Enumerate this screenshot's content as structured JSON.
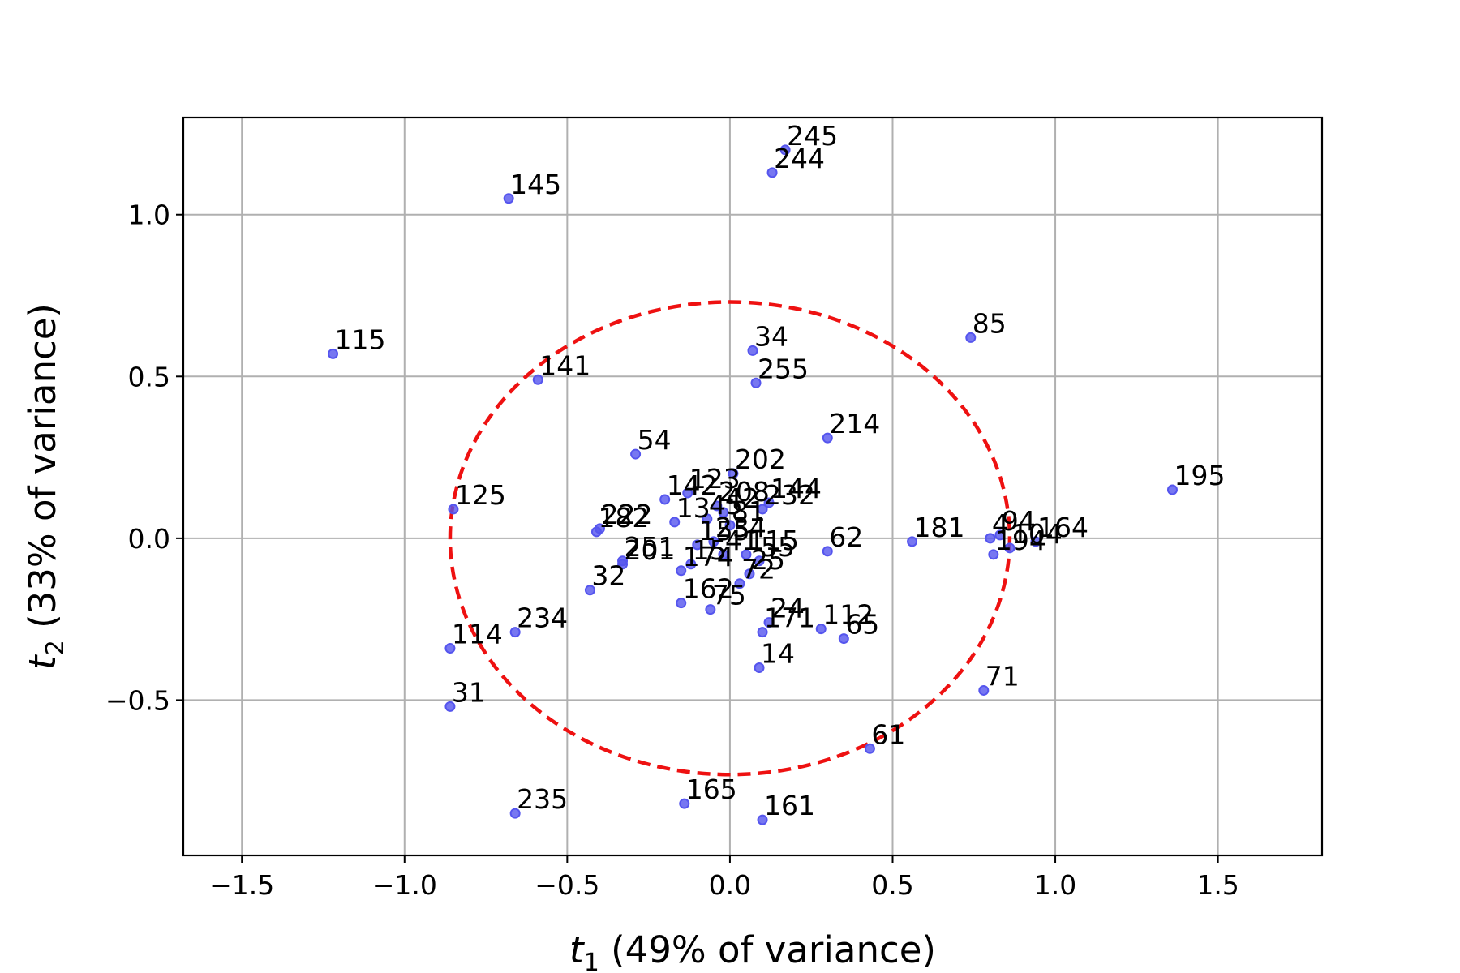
{
  "chart_data": {
    "type": "scatter",
    "title": "",
    "xlabel": {
      "symbol": "t",
      "sub": "1",
      "rest": " (49% of variance)"
    },
    "ylabel": {
      "symbol": "t",
      "sub": "2",
      "rest": " (33% of variance)"
    },
    "xlim": [
      -1.68,
      1.82
    ],
    "ylim": [
      -0.98,
      1.3
    ],
    "xticks": [
      -1.5,
      -1.0,
      -0.5,
      0.0,
      0.5,
      1.0,
      1.5
    ],
    "xtick_labels": [
      "−1.5",
      "−1.0",
      "−0.5",
      "0.0",
      "0.5",
      "1.0",
      "1.5"
    ],
    "yticks": [
      1.0,
      0.5,
      0.0,
      -0.5
    ],
    "ytick_labels": [
      "1.0",
      "0.5",
      "0.0",
      "−0.5"
    ],
    "grid": true,
    "colors": {
      "points": "#5555ee",
      "ellipse": "#ee1111"
    },
    "ellipse": {
      "center": [
        0.0,
        0.0
      ],
      "rx": 0.86,
      "ry": 0.73,
      "style": "dashed"
    },
    "points": [
      {
        "label": "245",
        "x": 0.17,
        "y": 1.2
      },
      {
        "label": "244",
        "x": 0.13,
        "y": 1.13
      },
      {
        "label": "145",
        "x": -0.68,
        "y": 1.05
      },
      {
        "label": "115",
        "x": -1.22,
        "y": 0.57
      },
      {
        "label": "85",
        "x": 0.74,
        "y": 0.62
      },
      {
        "label": "34",
        "x": 0.07,
        "y": 0.58
      },
      {
        "label": "141",
        "x": -0.59,
        "y": 0.49
      },
      {
        "label": "255",
        "x": 0.08,
        "y": 0.48
      },
      {
        "label": "214",
        "x": 0.3,
        "y": 0.31
      },
      {
        "label": "54",
        "x": -0.29,
        "y": 0.26
      },
      {
        "label": "202",
        "x": 0.01,
        "y": 0.2
      },
      {
        "label": "195",
        "x": 1.36,
        "y": 0.15
      },
      {
        "label": "125",
        "x": -0.85,
        "y": 0.09
      },
      {
        "label": "142",
        "x": -0.2,
        "y": 0.12
      },
      {
        "label": "123",
        "x": -0.13,
        "y": 0.14
      },
      {
        "label": "144",
        "x": 0.12,
        "y": 0.11
      },
      {
        "label": "232",
        "x": 0.1,
        "y": 0.09
      },
      {
        "label": "208",
        "x": -0.04,
        "y": 0.1
      },
      {
        "label": "42",
        "x": -0.02,
        "y": 0.08
      },
      {
        "label": "222",
        "x": -0.4,
        "y": 0.03
      },
      {
        "label": "182",
        "x": -0.41,
        "y": 0.02
      },
      {
        "label": "13",
        "x": -0.17,
        "y": 0.05
      },
      {
        "label": "45",
        "x": -0.07,
        "y": 0.06
      },
      {
        "label": "81",
        "x": 0.0,
        "y": 0.04
      },
      {
        "label": "181",
        "x": 0.56,
        "y": -0.01
      },
      {
        "label": "4",
        "x": 0.8,
        "y": 0.0
      },
      {
        "label": "94",
        "x": 0.83,
        "y": 0.01
      },
      {
        "label": "164",
        "x": 0.94,
        "y": -0.01
      },
      {
        "label": "104",
        "x": 0.86,
        "y": -0.03
      },
      {
        "label": "194",
        "x": 0.81,
        "y": -0.05
      },
      {
        "label": "62",
        "x": 0.3,
        "y": -0.04
      },
      {
        "label": "251",
        "x": -0.33,
        "y": -0.07
      },
      {
        "label": "201",
        "x": -0.33,
        "y": -0.08
      },
      {
        "label": "155",
        "x": -0.1,
        "y": -0.02
      },
      {
        "label": "234",
        "x": -0.05,
        "y": -0.01
      },
      {
        "label": "15",
        "x": -0.12,
        "y": -0.08
      },
      {
        "label": "174",
        "x": -0.15,
        "y": -0.1
      },
      {
        "label": "41",
        "x": -0.02,
        "y": -0.05
      },
      {
        "label": "55",
        "x": 0.09,
        "y": -0.07
      },
      {
        "label": "115",
        "x": 0.05,
        "y": -0.05
      },
      {
        "label": "25",
        "x": 0.06,
        "y": -0.11
      },
      {
        "label": "72",
        "x": 0.03,
        "y": -0.14
      },
      {
        "label": "32",
        "x": -0.43,
        "y": -0.16
      },
      {
        "label": "162",
        "x": -0.15,
        "y": -0.2
      },
      {
        "label": "75",
        "x": -0.06,
        "y": -0.22
      },
      {
        "label": "24",
        "x": 0.12,
        "y": -0.26
      },
      {
        "label": "171",
        "x": 0.1,
        "y": -0.29
      },
      {
        "label": "112",
        "x": 0.28,
        "y": -0.28
      },
      {
        "label": "65",
        "x": 0.35,
        "y": -0.31
      },
      {
        "label": "234",
        "x": -0.66,
        "y": -0.29
      },
      {
        "label": "114",
        "x": -0.86,
        "y": -0.34
      },
      {
        "label": "14",
        "x": 0.09,
        "y": -0.4
      },
      {
        "label": "71",
        "x": 0.78,
        "y": -0.47
      },
      {
        "label": "31",
        "x": -0.86,
        "y": -0.52
      },
      {
        "label": "61",
        "x": 0.43,
        "y": -0.65
      },
      {
        "label": "165",
        "x": -0.14,
        "y": -0.82
      },
      {
        "label": "161",
        "x": 0.1,
        "y": -0.87
      },
      {
        "label": "235",
        "x": -0.66,
        "y": -0.85
      }
    ]
  }
}
